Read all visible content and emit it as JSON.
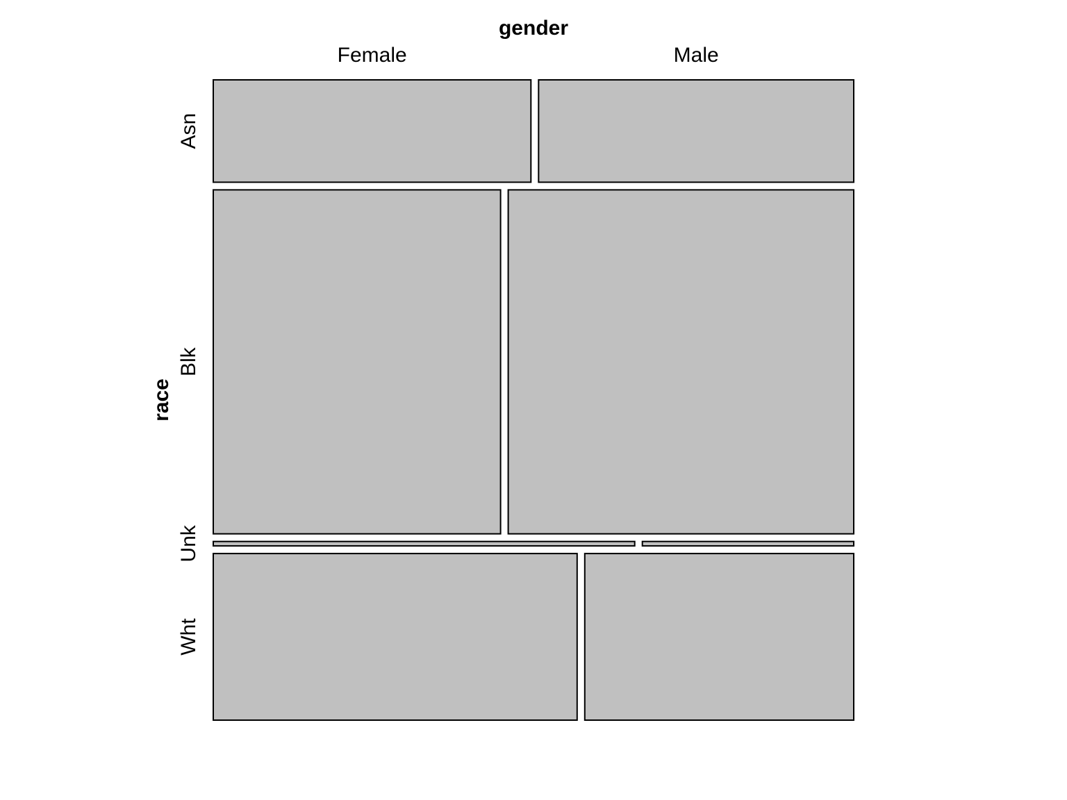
{
  "chart_data": {
    "type": "mosaic",
    "column_variable": "gender",
    "row_variable": "race",
    "columns": [
      "Female",
      "Male"
    ],
    "rows": [
      "Asn",
      "Blk",
      "Unk",
      "Wht"
    ],
    "tile_color": "#c0c0c0",
    "border_color": "#000000",
    "row_proportions": [
      0.161,
      0.541,
      0.007,
      0.262
    ],
    "female_share_within_row": [
      0.502,
      0.454,
      0.666,
      0.575
    ]
  }
}
